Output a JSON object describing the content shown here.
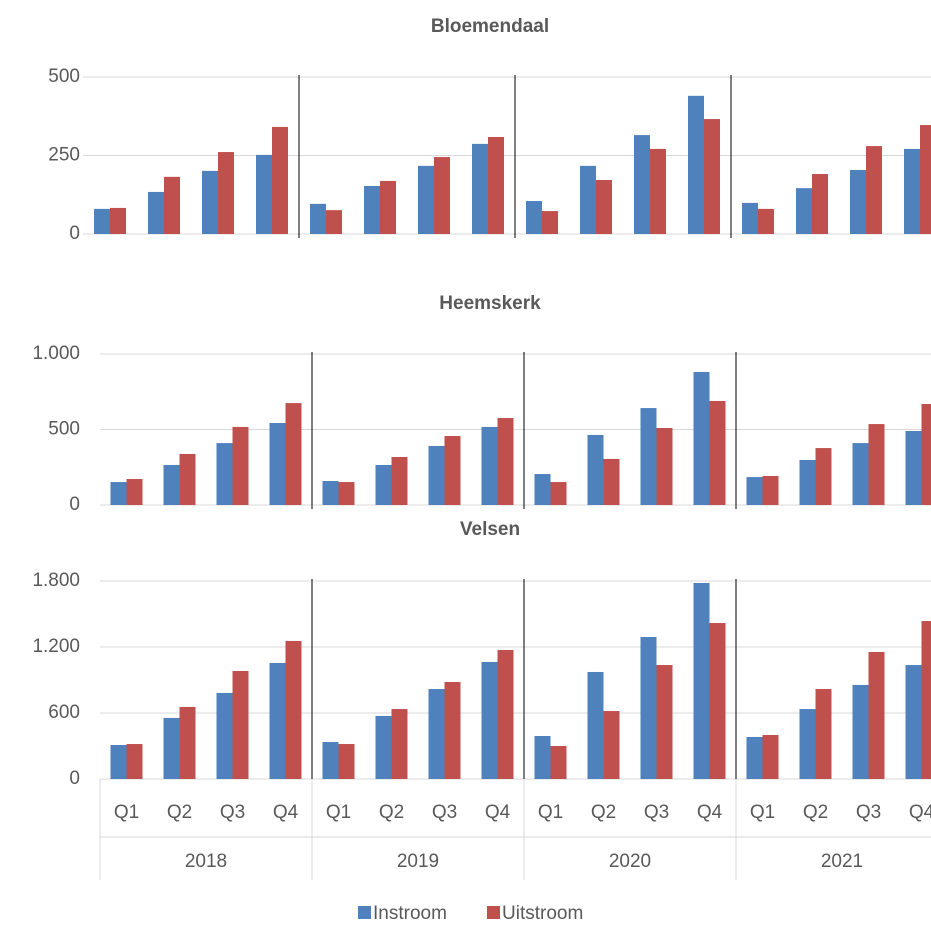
{
  "chart_data": [
    {
      "type": "bar",
      "title": "Bloemendaal",
      "ylim": [
        0,
        500
      ],
      "yticks": [
        0,
        250,
        500
      ],
      "grid": true,
      "series": [
        {
          "color": "#4f81bd",
          "values": [
            80,
            134,
            201,
            252,
            96,
            153,
            217,
            287,
            105,
            217,
            315,
            440,
            99,
            146,
            204,
            271
          ]
        },
        {
          "color": "#c0504d",
          "values": [
            83,
            182,
            261,
            341,
            76,
            169,
            245,
            309,
            73,
            172,
            271,
            366,
            80,
            191,
            280,
            347
          ]
        }
      ]
    },
    {
      "type": "bar",
      "title": "Heemskerk",
      "ylim": [
        0,
        1000
      ],
      "yticks": [
        0,
        500,
        {
          "value": 1000,
          "label": "1.000"
        }
      ],
      "grid": true,
      "series": [
        {
          "color": "#4f81bd",
          "values": [
            152,
            265,
            410,
            543,
            159,
            265,
            391,
            517,
            205,
            464,
            642,
            881,
            185,
            298,
            410,
            490
          ]
        },
        {
          "color": "#c0504d",
          "values": [
            172,
            338,
            517,
            675,
            152,
            318,
            457,
            576,
            152,
            305,
            510,
            689,
            192,
            377,
            536,
            669
          ]
        }
      ]
    },
    {
      "type": "bar",
      "title": "Velsen",
      "ylim": [
        0,
        1800
      ],
      "yticks": [
        0,
        600,
        {
          "value": 1200,
          "label": "1.200"
        },
        {
          "value": 1800,
          "label": "1.800"
        }
      ],
      "grid": true,
      "categories": [
        "Q1",
        "Q2",
        "Q3",
        "Q4",
        "Q1",
        "Q2",
        "Q3",
        "Q4",
        "Q1",
        "Q2",
        "Q3",
        "Q4",
        "Q1",
        "Q2",
        "Q3",
        "Q4"
      ],
      "groups": [
        "2018",
        "2019",
        "2020",
        "2021"
      ],
      "legend": "bottom",
      "series": [
        {
          "name": "Instroom",
          "color": "#4f81bd",
          "values": [
            309,
            555,
            782,
            1055,
            336,
            573,
            818,
            1064,
            391,
            973,
            1291,
            1782,
            382,
            636,
            855,
            1036
          ]
        },
        {
          "name": "Uitstroom",
          "color": "#c0504d",
          "values": [
            318,
            655,
            982,
            1255,
            318,
            636,
            882,
            1173,
            300,
            618,
            1036,
            1418,
            400,
            818,
            1155,
            1436
          ]
        }
      ]
    }
  ]
}
